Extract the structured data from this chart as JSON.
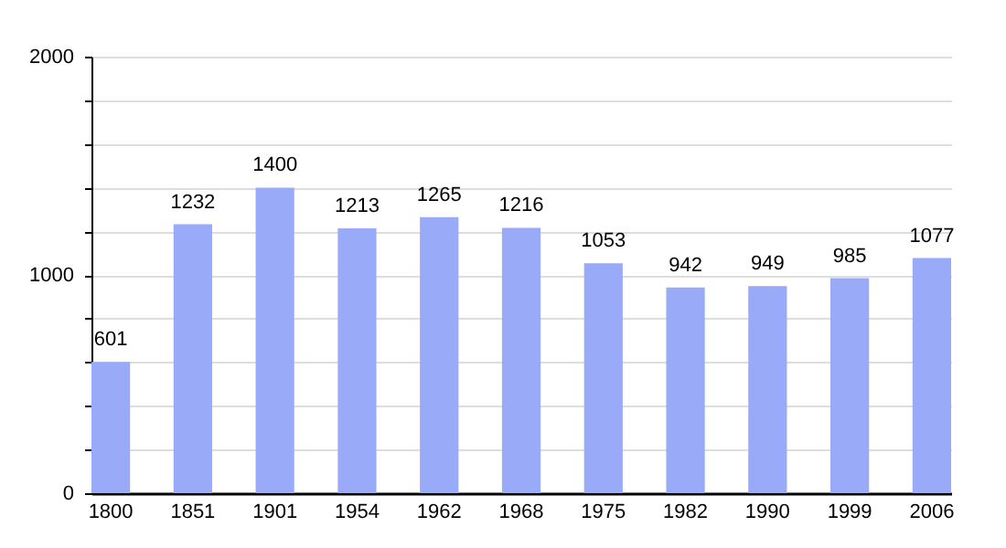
{
  "chart_data": {
    "type": "bar",
    "categories": [
      "1800",
      "1851",
      "1901",
      "1954",
      "1962",
      "1968",
      "1975",
      "1982",
      "1990",
      "1999",
      "2006"
    ],
    "values": [
      601,
      1232,
      1400,
      1213,
      1265,
      1216,
      1053,
      942,
      949,
      985,
      1077
    ],
    "color": "#99aaf8",
    "ylim": [
      0,
      2000
    ],
    "yticks": [
      0,
      {
        "value": 200,
        "label": null
      },
      {
        "value": 400,
        "label": null
      },
      {
        "value": 600,
        "label": null
      },
      {
        "value": 800,
        "label": null
      },
      1000,
      {
        "value": 1200,
        "label": null
      },
      {
        "value": 1400,
        "label": null
      },
      {
        "value": 1600,
        "label": null
      },
      {
        "value": 1800,
        "label": null
      },
      2000
    ],
    "grid": true,
    "data_labels": true
  }
}
